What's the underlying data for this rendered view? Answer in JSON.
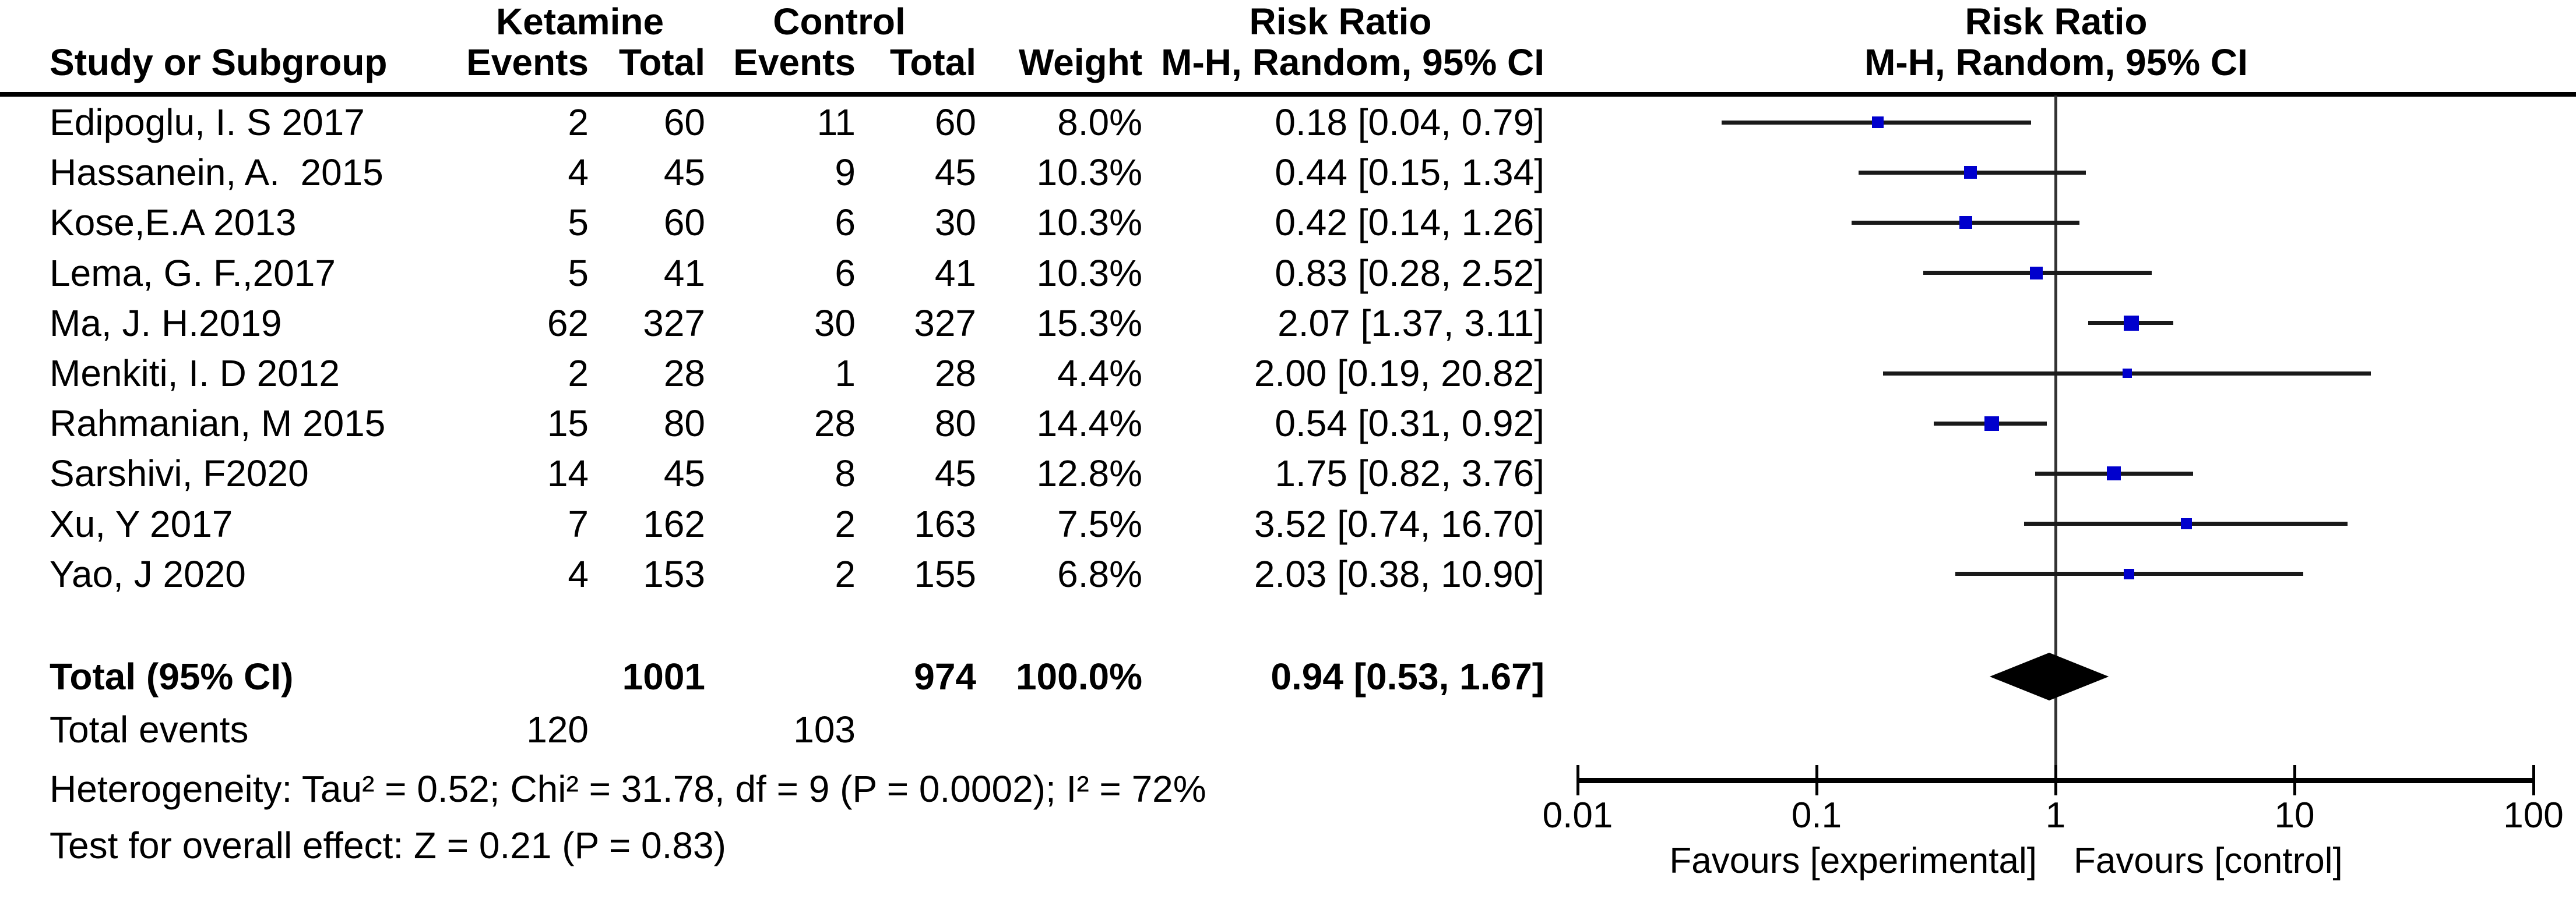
{
  "title_row": {
    "group1": "Ketamine",
    "group2": "Control",
    "effect": "Risk Ratio",
    "method": "M-H, Random, 95% CI"
  },
  "columns": {
    "study": "Study or Subgroup",
    "events": "Events",
    "total": "Total",
    "weight": "Weight"
  },
  "chart_data": {
    "type": "forest",
    "x_scale": "log10",
    "x_ticks": [
      0.01,
      0.1,
      1,
      10,
      100
    ],
    "x_tick_labels": [
      "0.01",
      "0.1",
      "1",
      "10",
      "100"
    ],
    "null_line_x": 1,
    "effect_label": "Risk Ratio",
    "method_label": "M-H, Random, 95% CI",
    "studies": [
      {
        "name": "Edipoglu, I. S 2017",
        "e_events": "2",
        "e_total": "60",
        "c_events": "11",
        "c_total": "60",
        "weight": "8.0%",
        "weight_pct": 8.0,
        "ci_label": "0.18 [0.04, 0.79]",
        "rr": 0.18,
        "lo": 0.04,
        "hi": 0.79
      },
      {
        "name": "Hassanein, A.  2015",
        "e_events": "4",
        "e_total": "45",
        "c_events": "9",
        "c_total": "45",
        "weight": "10.3%",
        "weight_pct": 10.3,
        "ci_label": "0.44 [0.15, 1.34]",
        "rr": 0.44,
        "lo": 0.15,
        "hi": 1.34
      },
      {
        "name": "Kose,E.A 2013",
        "e_events": "5",
        "e_total": "60",
        "c_events": "6",
        "c_total": "30",
        "weight": "10.3%",
        "weight_pct": 10.3,
        "ci_label": "0.42 [0.14, 1.26]",
        "rr": 0.42,
        "lo": 0.14,
        "hi": 1.26
      },
      {
        "name": "Lema, G. F.,2017",
        "e_events": "5",
        "e_total": "41",
        "c_events": "6",
        "c_total": "41",
        "weight": "10.3%",
        "weight_pct": 10.3,
        "ci_label": "0.83 [0.28, 2.52]",
        "rr": 0.83,
        "lo": 0.28,
        "hi": 2.52
      },
      {
        "name": "Ma, J. H.2019",
        "e_events": "62",
        "e_total": "327",
        "c_events": "30",
        "c_total": "327",
        "weight": "15.3%",
        "weight_pct": 15.3,
        "ci_label": "2.07 [1.37, 3.11]",
        "rr": 2.07,
        "lo": 1.37,
        "hi": 3.11
      },
      {
        "name": "Menkiti, I. D 2012",
        "e_events": "2",
        "e_total": "28",
        "c_events": "1",
        "c_total": "28",
        "weight": "4.4%",
        "weight_pct": 4.4,
        "ci_label": "2.00 [0.19, 20.82]",
        "rr": 2.0,
        "lo": 0.19,
        "hi": 20.82
      },
      {
        "name": "Rahmanian, M 2015",
        "e_events": "15",
        "e_total": "80",
        "c_events": "28",
        "c_total": "80",
        "weight": "14.4%",
        "weight_pct": 14.4,
        "ci_label": "0.54 [0.31, 0.92]",
        "rr": 0.54,
        "lo": 0.31,
        "hi": 0.92
      },
      {
        "name": "Sarshivi, F2020",
        "e_events": "14",
        "e_total": "45",
        "c_events": "8",
        "c_total": "45",
        "weight": "12.8%",
        "weight_pct": 12.8,
        "ci_label": "1.75 [0.82, 3.76]",
        "rr": 1.75,
        "lo": 0.82,
        "hi": 3.76
      },
      {
        "name": "Xu, Y 2017",
        "e_events": "7",
        "e_total": "162",
        "c_events": "2",
        "c_total": "163",
        "weight": "7.5%",
        "weight_pct": 7.5,
        "ci_label": "3.52 [0.74, 16.70]",
        "rr": 3.52,
        "lo": 0.74,
        "hi": 16.7
      },
      {
        "name": "Yao, J 2020",
        "e_events": "4",
        "e_total": "153",
        "c_events": "2",
        "c_total": "155",
        "weight": "6.8%",
        "weight_pct": 6.8,
        "ci_label": "2.03 [0.38, 10.90]",
        "rr": 2.03,
        "lo": 0.38,
        "hi": 10.9
      }
    ],
    "total": {
      "label": "Total (95% CI)",
      "e_total": "1001",
      "c_total": "974",
      "weight": "100.0%",
      "ci_label": "0.94 [0.53, 1.67]",
      "rr": 0.94,
      "lo": 0.53,
      "hi": 1.67
    },
    "total_events": {
      "label": "Total events",
      "experimental": "120",
      "control": "103"
    }
  },
  "footer": {
    "heterogeneity": "Heterogeneity: Tau² = 0.52; Chi² = 31.78, df = 9 (P = 0.0002); I² = 72%",
    "overall_effect": "Test for overall effect: Z = 0.21 (P = 0.83)"
  },
  "axis_labels": {
    "favours_left": "Favours [experimental]",
    "favours_right": "Favours [control]"
  },
  "colors": {
    "marker_blue": "#0000CD",
    "ci_line": "#1a1a1a",
    "diamond": "#000000",
    "axis": "#000000"
  }
}
